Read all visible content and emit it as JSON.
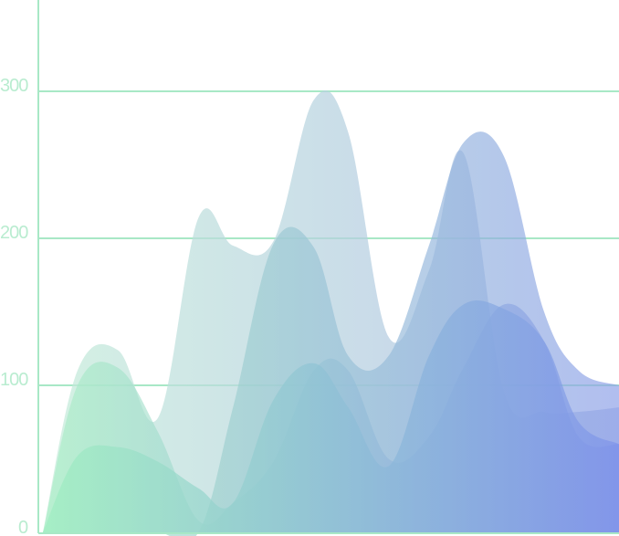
{
  "chart_data": {
    "type": "area",
    "title": "",
    "xlabel": "",
    "ylabel": "",
    "ylim": [
      0,
      360
    ],
    "y_ticks": [
      "0",
      "100",
      "200",
      "300"
    ],
    "grid": true,
    "legend": "none",
    "smooth": true,
    "x": [
      0,
      0.06,
      0.13,
      0.2,
      0.27,
      0.33,
      0.4,
      0.47,
      0.53,
      0.6,
      0.67,
      0.73,
      0.8,
      0.87,
      0.93,
      1
    ],
    "series": [
      {
        "values": [
          0,
          110,
          124,
          78,
          214,
          195,
          198,
          294,
          272,
          133,
          178,
          258,
          96,
          82,
          82,
          85
        ]
      },
      {
        "values": [
          0,
          0,
          0,
          0,
          0,
          85,
          196,
          194,
          120,
          120,
          195,
          265,
          256,
          150,
          110,
          100
        ]
      },
      {
        "values": [
          0,
          100,
          112,
          68,
          8,
          20,
          48,
          110,
          110,
          50,
          65,
          112,
          155,
          130,
          65,
          60
        ]
      },
      {
        "values": [
          0,
          52,
          58,
          48,
          30,
          20,
          90,
          115,
          85,
          45,
          120,
          155,
          152,
          130,
          75,
          60
        ]
      }
    ],
    "colors": {
      "axis": "#a8e8c6",
      "grid": "#a8e8c6",
      "tick_text": "#b9ecd0",
      "gradient_start": "#9eeec0",
      "gradient_end": "#7e93ea"
    }
  }
}
